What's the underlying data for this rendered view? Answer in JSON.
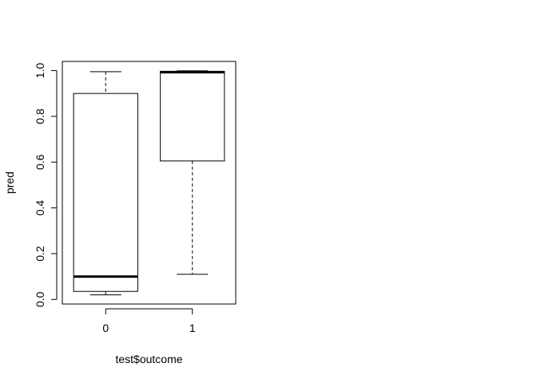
{
  "chart_data": {
    "type": "boxplot",
    "title": "",
    "xlabel": "test$outcome",
    "ylabel": "pred",
    "categories": [
      "0",
      "1"
    ],
    "boxes": [
      {
        "category": "0",
        "whisker_low": 0.02,
        "q1": 0.035,
        "median": 0.1,
        "q3": 0.9,
        "whisker_high": 0.995
      },
      {
        "category": "1",
        "whisker_low": 0.11,
        "q1": 0.605,
        "median": 0.993,
        "q3": 0.997,
        "whisker_high": 0.999
      }
    ],
    "ylim": [
      -0.02,
      1.04
    ],
    "yticks": [
      0.0,
      0.2,
      0.4,
      0.6,
      0.8,
      1.0
    ],
    "ytick_labels": [
      "0.0",
      "0.2",
      "0.4",
      "0.6",
      "0.8",
      "1.0"
    ],
    "grid": false,
    "legend": "none"
  }
}
